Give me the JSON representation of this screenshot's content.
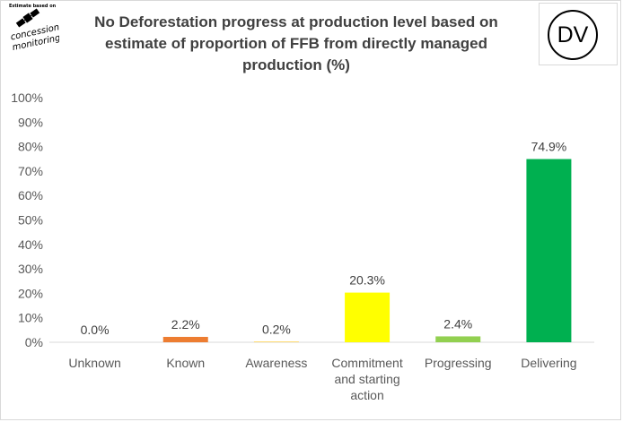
{
  "logo": {
    "caption": "Estimate based on",
    "text_line1": "concession",
    "text_line2": "monitoring"
  },
  "badge": {
    "text": "DV"
  },
  "chart_data": {
    "type": "bar",
    "title": "No Deforestation progress at production level based on estimate of proportion of FFB from directly managed production (%)",
    "title_lines": [
      "No Deforestation progress at production level based on",
      "estimate of proportion of FFB from directly managed",
      "production (%)"
    ],
    "categories": [
      [
        "Unknown"
      ],
      [
        "Known"
      ],
      [
        "Awareness"
      ],
      [
        "Commitment",
        "and starting",
        "action"
      ],
      [
        "Progressing"
      ],
      [
        "Delivering"
      ]
    ],
    "values": [
      0.0,
      2.2,
      0.2,
      20.3,
      2.4,
      74.9
    ],
    "data_labels": [
      "0.0%",
      "2.2%",
      "0.2%",
      "20.3%",
      "2.4%",
      "74.9%"
    ],
    "colors": [
      "#7f7f7f",
      "#ed7d31",
      "#ffc000",
      "#ffff00",
      "#92d050",
      "#00b050"
    ],
    "ylim": [
      0,
      100
    ],
    "y_ticks": [
      "0%",
      "10%",
      "20%",
      "30%",
      "40%",
      "50%",
      "60%",
      "70%",
      "80%",
      "90%",
      "100%"
    ],
    "grid": false,
    "legend": "none"
  }
}
